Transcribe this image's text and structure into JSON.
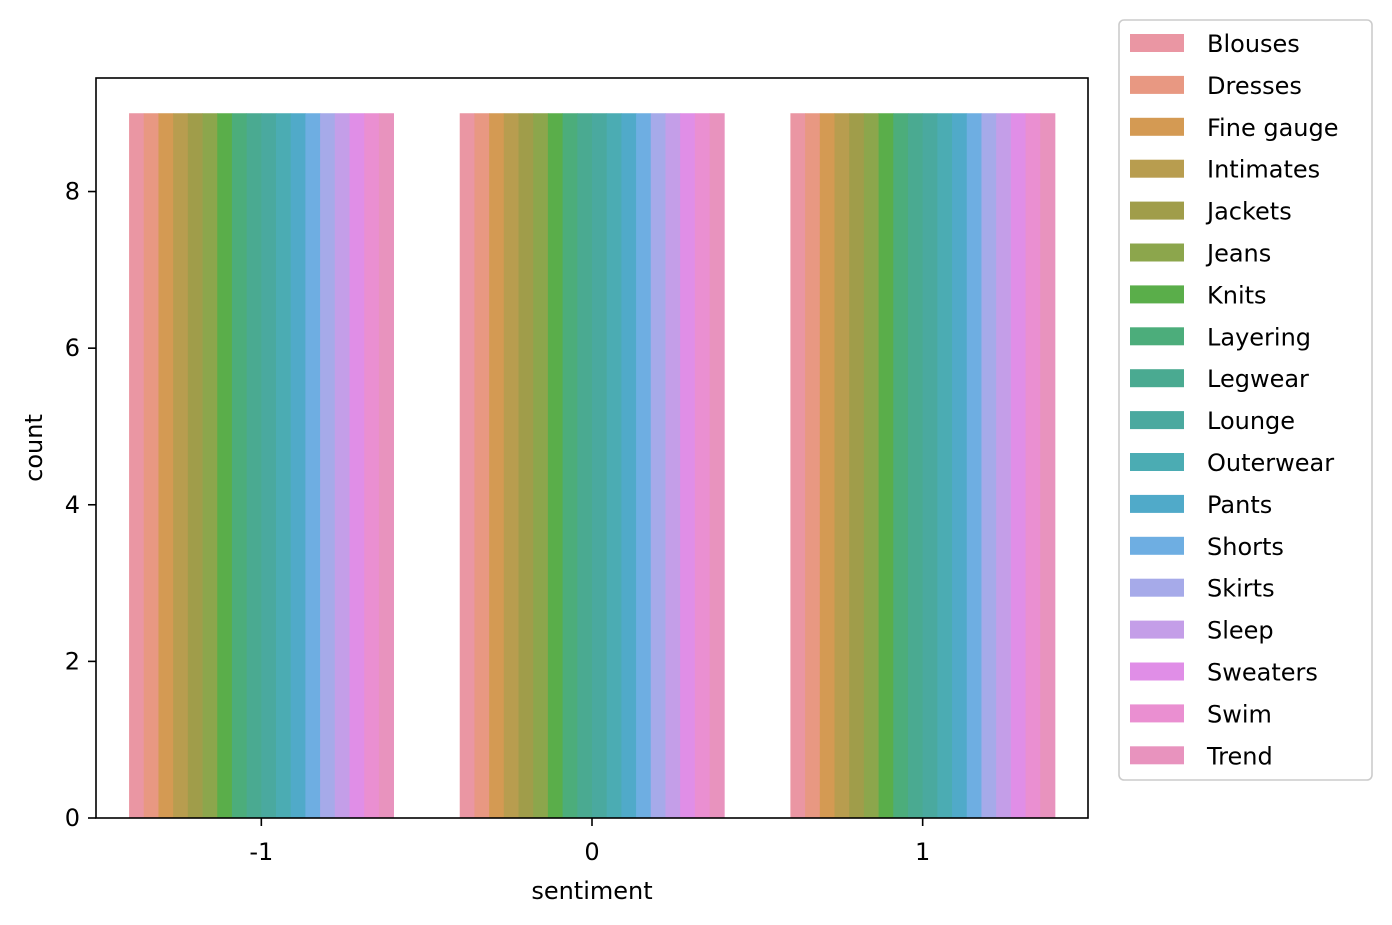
{
  "chart_data": {
    "type": "bar",
    "xlabel": "sentiment",
    "ylabel": "count",
    "categories": [
      "-1",
      "0",
      "1"
    ],
    "ylim": [
      0,
      9.45
    ],
    "yticks": [
      0,
      2,
      4,
      6,
      8
    ],
    "grid": false,
    "legend_position": "outside-right",
    "series": [
      {
        "name": "Blouses",
        "color": "#ea96a3",
        "values": [
          9,
          9,
          9
        ]
      },
      {
        "name": "Dresses",
        "color": "#e89882",
        "values": [
          9,
          9,
          9
        ]
      },
      {
        "name": "Fine gauge",
        "color": "#d49a53",
        "values": [
          9,
          9,
          9
        ]
      },
      {
        "name": "Intimates",
        "color": "#b89d4f",
        "values": [
          9,
          9,
          9
        ]
      },
      {
        "name": "Jackets",
        "color": "#a09d4a",
        "values": [
          9,
          9,
          9
        ]
      },
      {
        "name": "Jeans",
        "color": "#8ca64c",
        "values": [
          9,
          9,
          9
        ]
      },
      {
        "name": "Knits",
        "color": "#5aae4a",
        "values": [
          9,
          9,
          9
        ]
      },
      {
        "name": "Layering",
        "color": "#4cad7b",
        "values": [
          9,
          9,
          9
        ]
      },
      {
        "name": "Legwear",
        "color": "#4aaa91",
        "values": [
          9,
          9,
          9
        ]
      },
      {
        "name": "Lounge",
        "color": "#4aa99f",
        "values": [
          9,
          9,
          9
        ]
      },
      {
        "name": "Outerwear",
        "color": "#4bacb3",
        "values": [
          9,
          9,
          9
        ]
      },
      {
        "name": "Pants",
        "color": "#50aac9",
        "values": [
          9,
          9,
          9
        ]
      },
      {
        "name": "Shorts",
        "color": "#6eaee2",
        "values": [
          9,
          9,
          9
        ]
      },
      {
        "name": "Skirts",
        "color": "#a6aae9",
        "values": [
          9,
          9,
          9
        ]
      },
      {
        "name": "Sleep",
        "color": "#c49ee8",
        "values": [
          9,
          9,
          9
        ]
      },
      {
        "name": "Sweaters",
        "color": "#e08ee7",
        "values": [
          9,
          9,
          9
        ]
      },
      {
        "name": "Swim",
        "color": "#ea8fd1",
        "values": [
          9,
          9,
          9
        ]
      },
      {
        "name": "Trend",
        "color": "#e893be",
        "values": [
          9,
          9,
          9
        ]
      }
    ]
  }
}
